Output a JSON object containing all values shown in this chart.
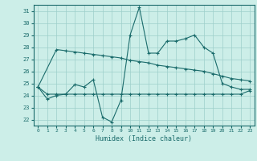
{
  "xlabel": "Humidex (Indice chaleur)",
  "xlim": [
    -0.5,
    23.5
  ],
  "ylim": [
    21.5,
    31.5
  ],
  "yticks": [
    22,
    23,
    24,
    25,
    26,
    27,
    28,
    29,
    30,
    31
  ],
  "xticks": [
    0,
    1,
    2,
    3,
    4,
    5,
    6,
    7,
    8,
    9,
    10,
    11,
    12,
    13,
    14,
    15,
    16,
    17,
    18,
    19,
    20,
    21,
    22,
    23
  ],
  "bg_color": "#cceee8",
  "line_color": "#1a6b6b",
  "grid_color": "#9ecfca",
  "series": {
    "line1": {
      "x": [
        0,
        1,
        2,
        3,
        4,
        5,
        6,
        7,
        8,
        9,
        10,
        11,
        12,
        13,
        14,
        15,
        16,
        17,
        18,
        19,
        20,
        21,
        22,
        23
      ],
      "y": [
        24.7,
        23.7,
        24.0,
        24.1,
        24.9,
        24.7,
        25.3,
        22.2,
        21.8,
        23.6,
        29.0,
        31.3,
        27.5,
        27.5,
        28.5,
        28.5,
        28.7,
        29.0,
        28.0,
        27.5,
        25.0,
        24.7,
        24.5,
        24.5
      ]
    },
    "line2": {
      "x": [
        0,
        2,
        3,
        4,
        5,
        6,
        7,
        8,
        9,
        10,
        11,
        12,
        13,
        14,
        15,
        16,
        17,
        18,
        19,
        20,
        21,
        22,
        23
      ],
      "y": [
        24.7,
        27.8,
        27.7,
        27.6,
        27.5,
        27.4,
        27.3,
        27.2,
        27.1,
        26.9,
        26.8,
        26.7,
        26.5,
        26.4,
        26.3,
        26.2,
        26.1,
        26.0,
        25.8,
        25.6,
        25.4,
        25.3,
        25.2
      ]
    },
    "line3": {
      "x": [
        0,
        1,
        2,
        3,
        4,
        5,
        6,
        7,
        8,
        9,
        10,
        11,
        12,
        13,
        14,
        15,
        16,
        17,
        18,
        19,
        20,
        21,
        22,
        23
      ],
      "y": [
        24.7,
        24.1,
        24.1,
        24.1,
        24.1,
        24.1,
        24.1,
        24.1,
        24.1,
        24.1,
        24.1,
        24.1,
        24.1,
        24.1,
        24.1,
        24.1,
        24.1,
        24.1,
        24.1,
        24.1,
        24.1,
        24.1,
        24.1,
        24.4
      ]
    }
  }
}
